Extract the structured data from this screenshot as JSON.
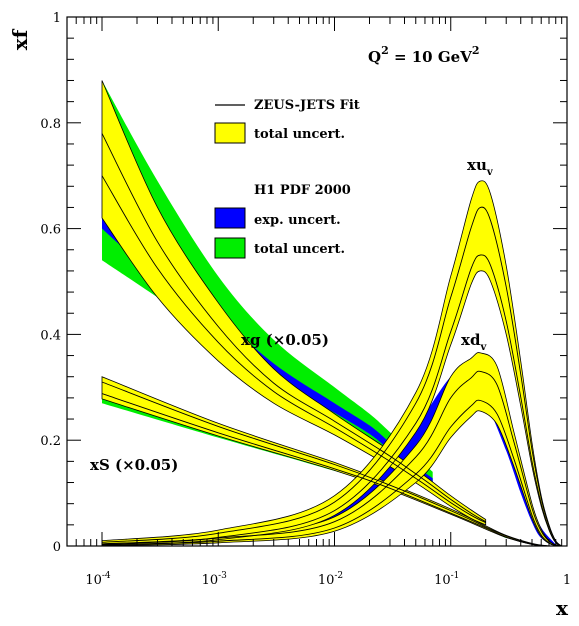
{
  "chart_data": {
    "type": "area",
    "xlabel": "x",
    "ylabel": "xf",
    "x_scale": "log",
    "xlim": [
      5e-05,
      1
    ],
    "ylim": [
      0,
      1
    ],
    "grid": false,
    "x_ticks": [
      {
        "value": 0.0001,
        "base": "10",
        "exp": "-4"
      },
      {
        "value": 0.001,
        "base": "10",
        "exp": "-3"
      },
      {
        "value": 0.01,
        "base": "10",
        "exp": "-2"
      },
      {
        "value": 0.1,
        "base": "10",
        "exp": "-1"
      },
      {
        "value": 1,
        "base": "1",
        "exp": ""
      }
    ],
    "y_ticks": [
      {
        "value": 0,
        "label": "0"
      },
      {
        "value": 0.2,
        "label": "0.2"
      },
      {
        "value": 0.4,
        "label": "0.4"
      },
      {
        "value": 0.6,
        "label": "0.6"
      },
      {
        "value": 0.8,
        "label": "0.8"
      },
      {
        "value": 1,
        "label": "1"
      }
    ],
    "scale_label": {
      "lhs": "Q",
      "lhs_exp": "2",
      "rhs": " = 10 GeV",
      "rhs_exp": "2"
    },
    "legend": {
      "placement": "top-left",
      "zeus_fit": "ZEUS-JETS Fit",
      "zeus_total": "total uncert.",
      "h1_title": "H1 PDF 2000",
      "h1_exp": "exp. uncert.",
      "h1_total": "total uncert."
    },
    "curve_labels": {
      "xuv": {
        "main": "xu",
        "sub": "v"
      },
      "xdv": {
        "main": "xd",
        "sub": "v"
      },
      "xg": "xg (×0.05)",
      "xS": "xS (×0.05)"
    },
    "colors": {
      "zeus_band": "#ffff00",
      "h1_exp": "#0000ff",
      "h1_total": "#00ee00",
      "line": "#000000"
    },
    "series": [
      {
        "id": "xuv-zeus",
        "x": [
          0.0001,
          0.001,
          0.01,
          0.05,
          0.1,
          0.15,
          0.18,
          0.22,
          0.3,
          0.4,
          0.5,
          0.6,
          0.7,
          0.8,
          0.9
        ],
        "central": [
          0.006,
          0.02,
          0.075,
          0.25,
          0.43,
          0.555,
          0.58,
          0.56,
          0.45,
          0.3,
          0.17,
          0.085,
          0.035,
          0.008,
          0.0
        ],
        "upper": [
          0.01,
          0.03,
          0.095,
          0.29,
          0.51,
          0.655,
          0.69,
          0.665,
          0.53,
          0.35,
          0.195,
          0.095,
          0.04,
          0.01,
          0.0
        ],
        "lower": [
          0.003,
          0.012,
          0.058,
          0.215,
          0.38,
          0.495,
          0.52,
          0.5,
          0.4,
          0.265,
          0.15,
          0.075,
          0.03,
          0.006,
          0.0
        ],
        "line_upper": [
          0.007,
          0.024,
          0.083,
          0.27,
          0.47,
          0.602,
          0.64,
          0.615,
          0.49,
          0.325,
          0.182,
          0.09,
          0.037,
          0.009,
          0.0
        ],
        "line_lower": [
          0.004,
          0.016,
          0.067,
          0.232,
          0.405,
          0.525,
          0.55,
          0.53,
          0.425,
          0.282,
          0.16,
          0.08,
          0.032,
          0.007,
          0.0
        ]
      },
      {
        "id": "xdv-zeus",
        "x": [
          0.0001,
          0.001,
          0.01,
          0.05,
          0.1,
          0.15,
          0.18,
          0.25,
          0.35,
          0.5,
          0.6,
          0.7,
          0.8,
          0.9
        ],
        "central": [
          0.003,
          0.012,
          0.04,
          0.15,
          0.25,
          0.29,
          0.3,
          0.275,
          0.18,
          0.065,
          0.025,
          0.008,
          0.002,
          0.0
        ],
        "upper": [
          0.006,
          0.02,
          0.055,
          0.19,
          0.32,
          0.355,
          0.365,
          0.34,
          0.215,
          0.08,
          0.032,
          0.01,
          0.002,
          0.0
        ],
        "lower": [
          0.001,
          0.006,
          0.028,
          0.12,
          0.205,
          0.245,
          0.255,
          0.23,
          0.15,
          0.052,
          0.018,
          0.005,
          0.001,
          0.0
        ],
        "line_upper": [
          0.004,
          0.015,
          0.046,
          0.168,
          0.28,
          0.318,
          0.33,
          0.305,
          0.196,
          0.071,
          0.028,
          0.009,
          0.002,
          0.0
        ],
        "line_lower": [
          0.002,
          0.009,
          0.034,
          0.136,
          0.225,
          0.265,
          0.275,
          0.25,
          0.164,
          0.058,
          0.021,
          0.006,
          0.001,
          0.0
        ]
      },
      {
        "id": "xdv-h1",
        "x": [
          0.001,
          0.01,
          0.03,
          0.06,
          0.1,
          0.15,
          0.2,
          0.3,
          0.4,
          0.5,
          0.6,
          0.8
        ],
        "upper": [
          0.015,
          0.065,
          0.15,
          0.25,
          0.32,
          0.345,
          0.33,
          0.24,
          0.15,
          0.08,
          0.035,
          0.003
        ],
        "lower": [
          0.01,
          0.05,
          0.125,
          0.215,
          0.275,
          0.29,
          0.27,
          0.18,
          0.1,
          0.045,
          0.015,
          0.0
        ]
      },
      {
        "id": "xg-h1",
        "x": [
          0.0001,
          0.0003,
          0.001,
          0.003,
          0.01,
          0.02,
          0.03,
          0.05,
          0.07
        ],
        "total_upper": [
          0.88,
          0.69,
          0.51,
          0.39,
          0.3,
          0.25,
          0.215,
          0.17,
          0.14
        ],
        "total_lower": [
          0.54,
          0.47,
          0.39,
          0.31,
          0.24,
          0.2,
          0.17,
          0.13,
          0.11
        ],
        "exp_upper": [
          0.69,
          0.56,
          0.44,
          0.345,
          0.27,
          0.228,
          0.195,
          0.152,
          0.128
        ],
        "exp_lower": [
          0.6,
          0.505,
          0.405,
          0.32,
          0.252,
          0.212,
          0.18,
          0.14,
          0.118
        ]
      },
      {
        "id": "xg-zeus",
        "x": [
          0.0001,
          0.0003,
          0.001,
          0.003,
          0.01,
          0.03,
          0.06,
          0.1,
          0.15,
          0.2
        ],
        "central": [
          0.74,
          0.55,
          0.4,
          0.3,
          0.23,
          0.165,
          0.12,
          0.085,
          0.06,
          0.045
        ],
        "upper": [
          0.88,
          0.64,
          0.46,
          0.335,
          0.25,
          0.18,
          0.132,
          0.095,
          0.068,
          0.05
        ],
        "lower": [
          0.62,
          0.47,
          0.35,
          0.27,
          0.21,
          0.15,
          0.108,
          0.075,
          0.052,
          0.04
        ],
        "line_upper": [
          0.78,
          0.575,
          0.415,
          0.308,
          0.236,
          0.17,
          0.124,
          0.088,
          0.062,
          0.046
        ],
        "line_lower": [
          0.7,
          0.525,
          0.385,
          0.292,
          0.224,
          0.16,
          0.116,
          0.082,
          0.058,
          0.044
        ]
      },
      {
        "id": "xS-h1",
        "x": [
          0.0001,
          0.001,
          0.01,
          0.03,
          0.1,
          0.3
        ],
        "upper": [
          0.29,
          0.215,
          0.15,
          0.115,
          0.07,
          0.018
        ],
        "lower": [
          0.27,
          0.205,
          0.142,
          0.108,
          0.064,
          0.015
        ]
      },
      {
        "id": "xS-zeus",
        "x": [
          0.0001,
          0.001,
          0.01,
          0.03,
          0.1,
          0.2,
          0.3,
          0.5,
          0.7
        ],
        "central": [
          0.3,
          0.22,
          0.15,
          0.112,
          0.065,
          0.035,
          0.018,
          0.004,
          0.0
        ],
        "upper": [
          0.32,
          0.232,
          0.158,
          0.118,
          0.07,
          0.038,
          0.02,
          0.005,
          0.0
        ],
        "lower": [
          0.278,
          0.208,
          0.143,
          0.106,
          0.06,
          0.032,
          0.016,
          0.003,
          0.0
        ],
        "line_upper": [
          0.31,
          0.226,
          0.154,
          0.115,
          0.067,
          0.036,
          0.019,
          0.004,
          0.0
        ],
        "line_lower": [
          0.288,
          0.214,
          0.146,
          0.109,
          0.062,
          0.034,
          0.017,
          0.003,
          0.0
        ]
      }
    ]
  }
}
